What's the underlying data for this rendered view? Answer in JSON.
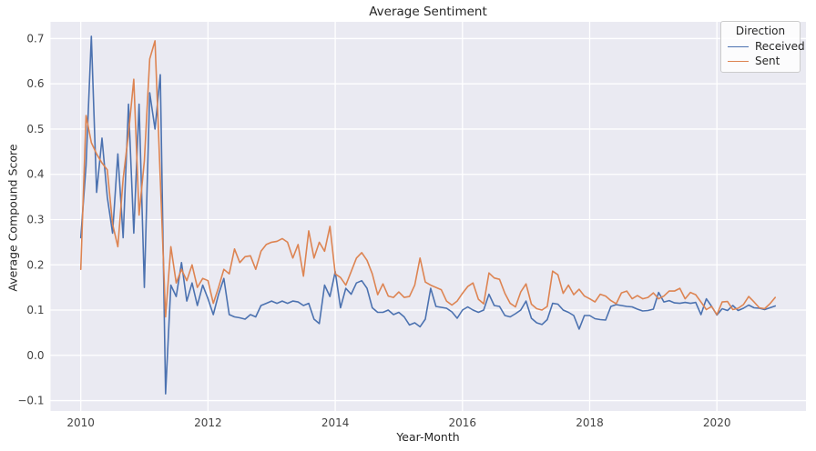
{
  "figure": {
    "title": "Average Sentiment",
    "background_color": "#ffffff",
    "axes_background_color": "#EAEAF2",
    "grid_color": "#ffffff"
  },
  "chart_data": {
    "type": "line",
    "title": "Average Sentiment",
    "xlabel": "Year-Month",
    "ylabel": "Average Compound Score",
    "x_start": "2010-01",
    "x_frequency": "monthly",
    "x_end": "2020-12",
    "grid": true,
    "legend": {
      "title": "Direction",
      "position": "upper right",
      "entries": [
        "Received",
        "Sent"
      ]
    },
    "xtick_labels": [
      "2010",
      "2012",
      "2014",
      "2016",
      "2018",
      "2020"
    ],
    "xtick_month_index": [
      0,
      24,
      48,
      72,
      96,
      120
    ],
    "ytick_labels": [
      "−0.1",
      "0.0",
      "0.1",
      "0.2",
      "0.3",
      "0.4",
      "0.5",
      "0.6",
      "0.7"
    ],
    "ytick_values": [
      -0.1,
      0.0,
      0.1,
      0.2,
      0.3,
      0.4,
      0.5,
      0.6,
      0.7
    ],
    "ylim": [
      -0.123,
      0.737
    ],
    "xlim_month_index": [
      -5.7,
      136.8
    ],
    "series": [
      {
        "name": "Received",
        "color": "#4C72B0",
        "values": [
          0.26,
          0.42,
          0.705,
          0.36,
          0.48,
          0.35,
          0.27,
          0.445,
          0.26,
          0.555,
          0.27,
          0.555,
          0.15,
          0.58,
          0.5,
          0.62,
          -0.085,
          0.155,
          0.13,
          0.205,
          0.12,
          0.16,
          0.11,
          0.155,
          0.125,
          0.09,
          0.135,
          0.17,
          0.09,
          0.085,
          0.083,
          0.08,
          0.09,
          0.085,
          0.11,
          0.115,
          0.12,
          0.115,
          0.12,
          0.115,
          0.12,
          0.118,
          0.11,
          0.115,
          0.08,
          0.07,
          0.155,
          0.13,
          0.185,
          0.105,
          0.148,
          0.135,
          0.16,
          0.165,
          0.148,
          0.105,
          0.095,
          0.095,
          0.1,
          0.09,
          0.095,
          0.085,
          0.067,
          0.072,
          0.063,
          0.08,
          0.148,
          0.108,
          0.106,
          0.104,
          0.096,
          0.082,
          0.1,
          0.107,
          0.1,
          0.095,
          0.1,
          0.135,
          0.11,
          0.108,
          0.088,
          0.085,
          0.092,
          0.1,
          0.12,
          0.082,
          0.072,
          0.068,
          0.079,
          0.115,
          0.113,
          0.1,
          0.095,
          0.088,
          0.058,
          0.088,
          0.088,
          0.081,
          0.079,
          0.078,
          0.108,
          0.112,
          0.11,
          0.108,
          0.107,
          0.102,
          0.098,
          0.099,
          0.102,
          0.139,
          0.118,
          0.121,
          0.116,
          0.115,
          0.117,
          0.115,
          0.117,
          0.09,
          0.125,
          0.108,
          0.089,
          0.103,
          0.099,
          0.11,
          0.099,
          0.104,
          0.111,
          0.105,
          0.104,
          0.101,
          0.105,
          0.109
        ]
      },
      {
        "name": "Sent",
        "color": "#DD8452",
        "values": [
          0.19,
          0.53,
          0.47,
          0.445,
          0.425,
          0.41,
          0.29,
          0.24,
          0.39,
          0.49,
          0.61,
          0.31,
          0.43,
          0.655,
          0.695,
          0.39,
          0.085,
          0.24,
          0.16,
          0.19,
          0.165,
          0.2,
          0.15,
          0.17,
          0.165,
          0.115,
          0.15,
          0.19,
          0.18,
          0.235,
          0.205,
          0.218,
          0.22,
          0.19,
          0.23,
          0.245,
          0.25,
          0.252,
          0.258,
          0.25,
          0.215,
          0.245,
          0.175,
          0.275,
          0.215,
          0.25,
          0.23,
          0.285,
          0.18,
          0.172,
          0.155,
          0.185,
          0.215,
          0.227,
          0.21,
          0.18,
          0.134,
          0.158,
          0.131,
          0.128,
          0.14,
          0.128,
          0.13,
          0.155,
          0.215,
          0.162,
          0.155,
          0.15,
          0.145,
          0.12,
          0.111,
          0.12,
          0.137,
          0.152,
          0.16,
          0.124,
          0.114,
          0.182,
          0.171,
          0.168,
          0.137,
          0.115,
          0.107,
          0.14,
          0.158,
          0.113,
          0.103,
          0.1,
          0.108,
          0.186,
          0.178,
          0.137,
          0.155,
          0.134,
          0.146,
          0.131,
          0.125,
          0.118,
          0.135,
          0.131,
          0.121,
          0.114,
          0.138,
          0.142,
          0.125,
          0.132,
          0.125,
          0.128,
          0.138,
          0.125,
          0.131,
          0.142,
          0.142,
          0.148,
          0.125,
          0.139,
          0.134,
          0.118,
          0.101,
          0.108,
          0.09,
          0.118,
          0.119,
          0.101,
          0.104,
          0.112,
          0.13,
          0.118,
          0.105,
          0.103,
          0.114,
          0.128
        ]
      }
    ]
  }
}
